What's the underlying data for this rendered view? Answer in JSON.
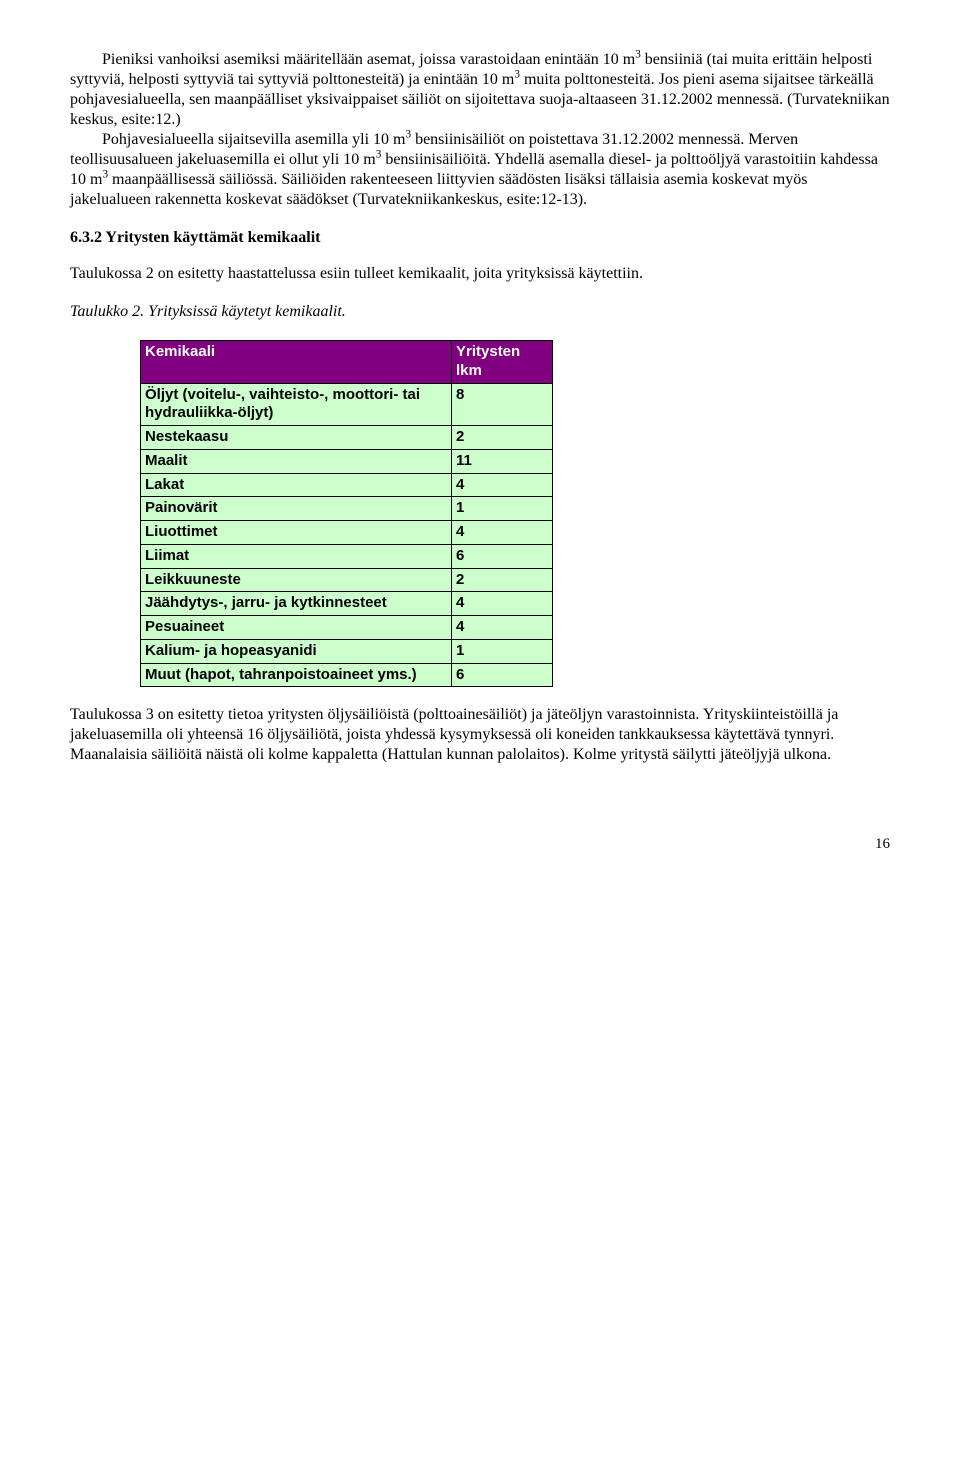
{
  "header_color": "#800080",
  "row_color": "#ccffcc",
  "para1_a": "Pieniksi vanhoiksi asemiksi määritellään asemat, joissa varastoidaan enintään 10 m",
  "para1_b": " bensiiniä (tai muita erittäin helposti syttyviä, helposti syttyviä tai syttyviä polttonesteitä) ja enintään 10 m",
  "para1_c": " muita polttonesteitä.  Jos pieni asema sijaitsee tärkeällä pohjavesialueella, sen maanpäälliset yksivaippaiset säiliöt on sijoitettava suoja-altaaseen 31.12.2002 mennessä. (Turvatekniikan keskus, esite:12.)",
  "para2_a": "Pohjavesialueella sijaitsevilla  asemilla yli 10 m",
  "para2_b": " bensiinisäiliöt on poistettava 31.12.2002 mennessä. Merven teollisuusalueen jakeluasemilla ei ollut yli 10 m",
  "para2_c": " bensiinisäiliöitä. Yhdellä asemalla diesel- ja polttoöljyä varastoitiin kahdessa 10 m",
  "para2_d": " maanpäällisessä säiliössä. Säiliöiden rakenteeseen liittyvien säädösten lisäksi tällaisia asemia koskevat myös jakelualueen rakennetta koskevat säädökset (Turvatekniikankeskus, esite:12-13).",
  "sup3": "3",
  "heading": "6.3.2 Yritysten käyttämät kemikaalit",
  "intro_table": "Taulukossa 2 on esitetty haastattelussa esiin tulleet kemikaalit, joita yrityksissä käytettiin.",
  "table_caption": "Taulukko 2. Yrityksissä käytetyt kemikaalit.",
  "table": {
    "header_col1": "Kemikaali",
    "header_col2_line1": "Yritysten",
    "header_col2_line2": "lkm",
    "rows": [
      {
        "name": "Öljyt (voitelu-, vaihteisto-, moottori- tai hydrauliikka-öljyt)",
        "count": "8"
      },
      {
        "name": "Nestekaasu",
        "count": "2"
      },
      {
        "name": "Maalit",
        "count": "11"
      },
      {
        "name": "Lakat",
        "count": "4"
      },
      {
        "name": "Painovärit",
        "count": "1"
      },
      {
        "name": "Liuottimet",
        "count": "4"
      },
      {
        "name": "Liimat",
        "count": "6"
      },
      {
        "name": "Leikkuuneste",
        "count": "2"
      },
      {
        "name": "Jäähdytys-, jarru- ja kytkinnesteet",
        "count": "4"
      },
      {
        "name": "Pesuaineet",
        "count": "4"
      },
      {
        "name": "Kalium- ja hopeasyanidi",
        "count": "1"
      },
      {
        "name": "Muut (hapot, tahranpoistoaineet yms.)",
        "count": "6"
      }
    ]
  },
  "para3": "Taulukossa 3 on esitetty tietoa yritysten öljysäiliöistä (polttoainesäiliöt) ja jäteöljyn varastoinnista. Yrityskiinteistöillä ja jakeluasemilla oli yhteensä 16 öljysäiliötä, joista yhdessä kysymyksessä oli koneiden tankkauksessa käytettävä tynnyri. Maanalaisia säiliöitä näistä oli kolme kappaletta (Hattulan kunnan palolaitos). Kolme yritystä säilytti jäteöljyjä ulkona.",
  "page_number": "16"
}
